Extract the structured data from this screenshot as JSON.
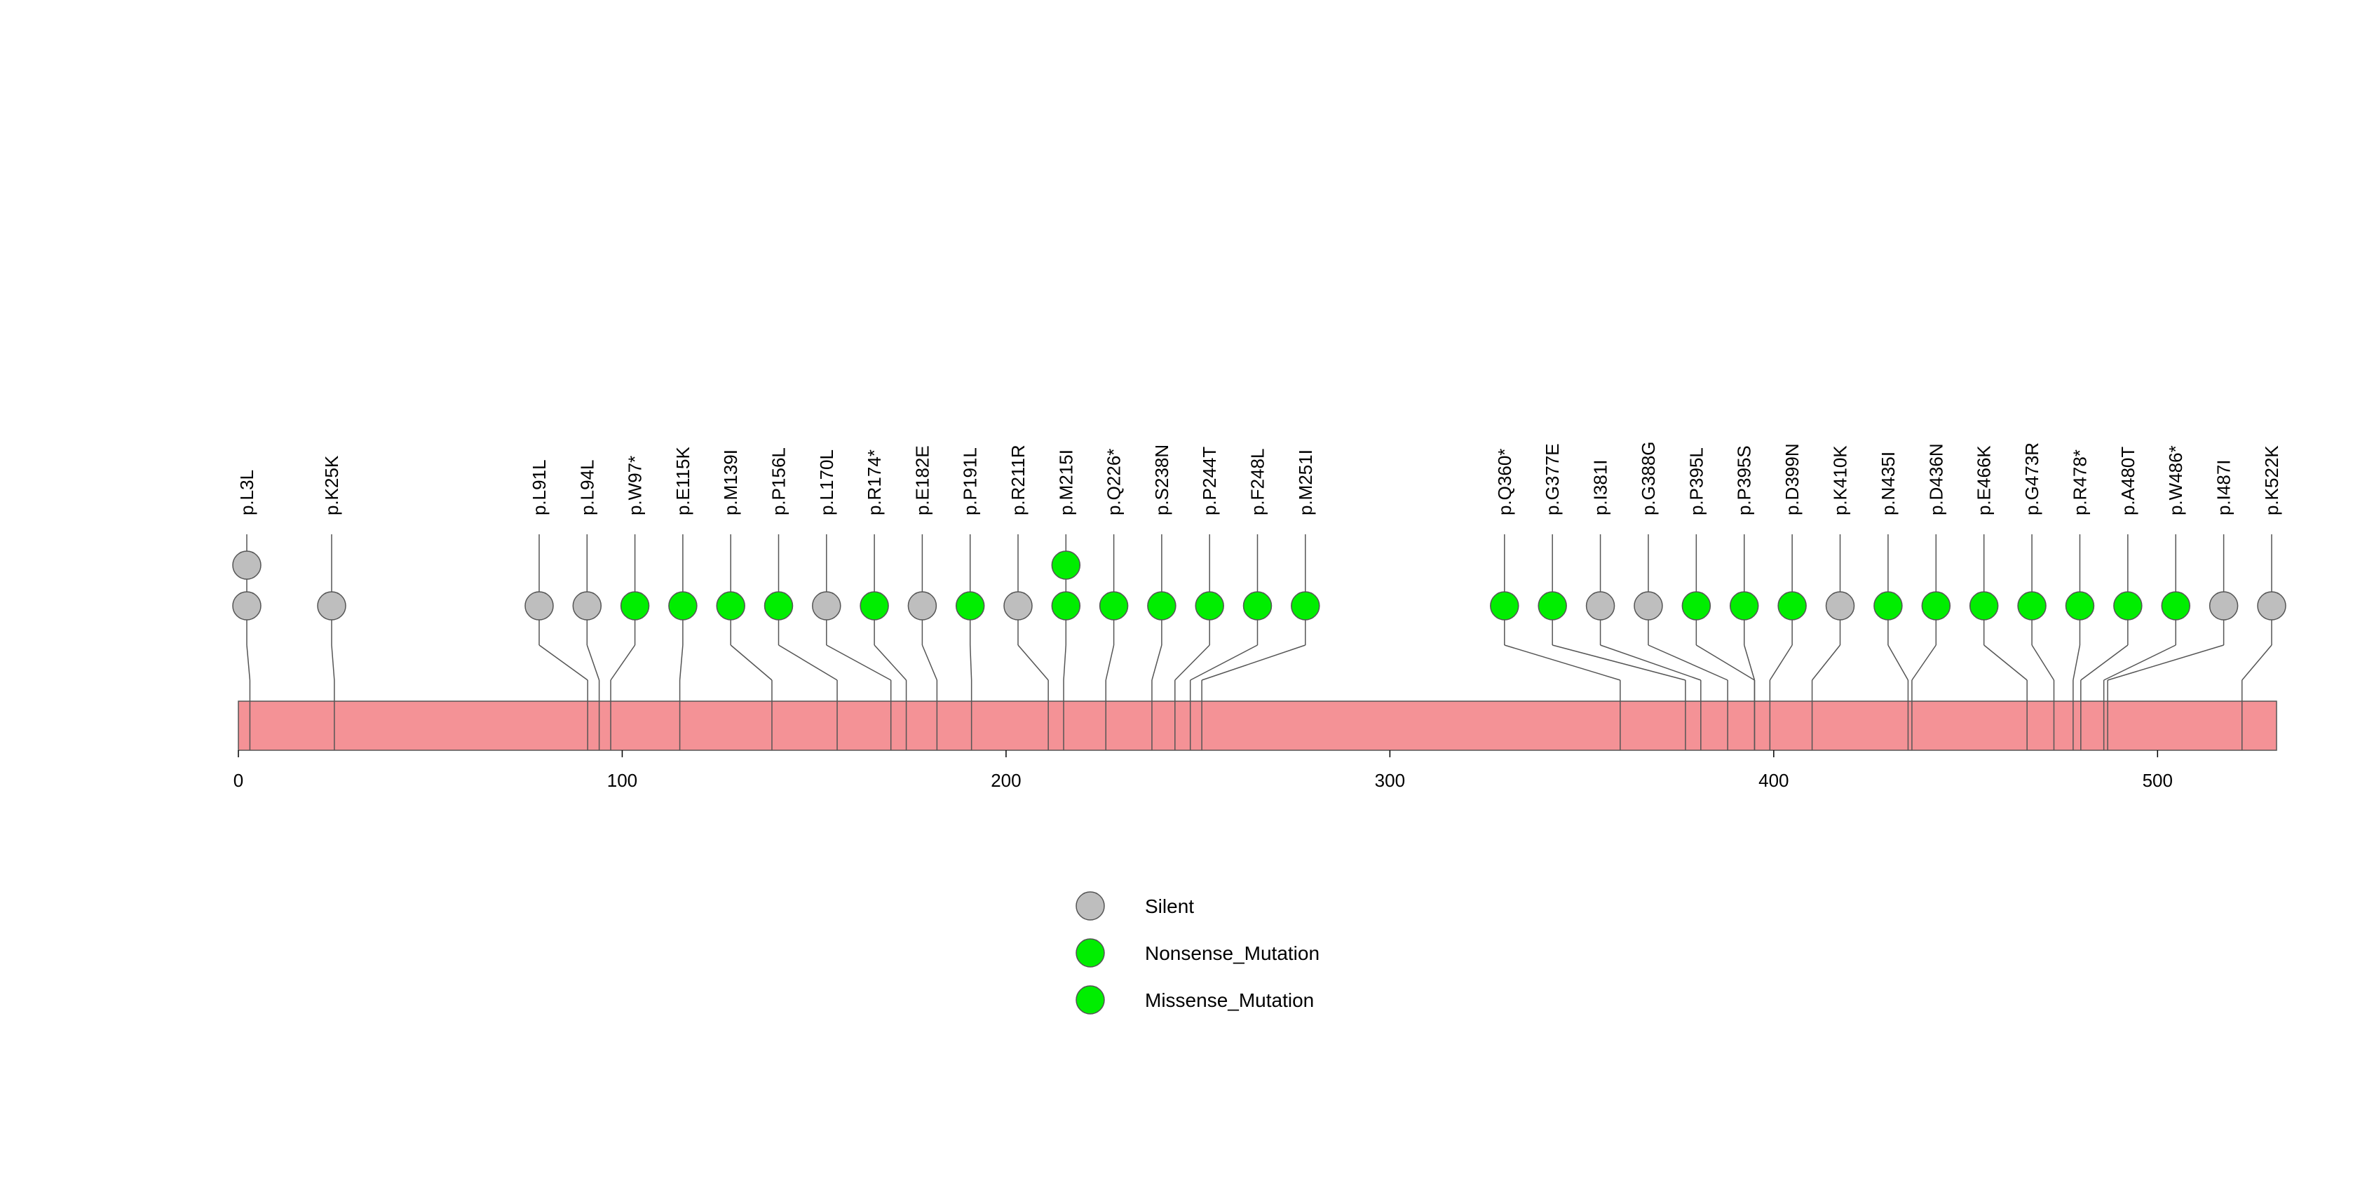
{
  "chart_data": {
    "type": "lollipop",
    "title": "",
    "xlabel": "",
    "ylabel": "",
    "protein_length": 531,
    "xlim": [
      0,
      531
    ],
    "x_ticks": [
      0,
      100,
      200,
      300,
      400,
      500
    ],
    "x_tick_labels": [
      "0",
      "100",
      "200",
      "300",
      "400",
      "500"
    ],
    "mutations": [
      {
        "label": "p.L3L",
        "pos": 3,
        "types": [
          "Silent",
          "Silent"
        ]
      },
      {
        "label": "p.K25K",
        "pos": 25,
        "types": [
          "Silent"
        ]
      },
      {
        "label": "p.L91L",
        "pos": 91,
        "types": [
          "Silent"
        ]
      },
      {
        "label": "p.L94L",
        "pos": 94,
        "types": [
          "Silent"
        ]
      },
      {
        "label": "p.W97*",
        "pos": 97,
        "types": [
          "Nonsense_Mutation"
        ]
      },
      {
        "label": "p.E115K",
        "pos": 115,
        "types": [
          "Missense_Mutation"
        ]
      },
      {
        "label": "p.M139I",
        "pos": 139,
        "types": [
          "Missense_Mutation"
        ]
      },
      {
        "label": "p.P156L",
        "pos": 156,
        "types": [
          "Missense_Mutation"
        ]
      },
      {
        "label": "p.L170L",
        "pos": 170,
        "types": [
          "Silent"
        ]
      },
      {
        "label": "p.R174*",
        "pos": 174,
        "types": [
          "Nonsense_Mutation"
        ]
      },
      {
        "label": "p.E182E",
        "pos": 182,
        "types": [
          "Silent"
        ]
      },
      {
        "label": "p.P191L",
        "pos": 191,
        "types": [
          "Missense_Mutation"
        ]
      },
      {
        "label": "p.R211R",
        "pos": 211,
        "types": [
          "Silent"
        ]
      },
      {
        "label": "p.M215I",
        "pos": 215,
        "types": [
          "Missense_Mutation",
          "Missense_Mutation"
        ]
      },
      {
        "label": "p.Q226*",
        "pos": 226,
        "types": [
          "Nonsense_Mutation"
        ]
      },
      {
        "label": "p.S238N",
        "pos": 238,
        "types": [
          "Missense_Mutation"
        ]
      },
      {
        "label": "p.P244T",
        "pos": 244,
        "types": [
          "Missense_Mutation"
        ]
      },
      {
        "label": "p.F248L",
        "pos": 248,
        "types": [
          "Missense_Mutation"
        ]
      },
      {
        "label": "p.M251I",
        "pos": 251,
        "types": [
          "Missense_Mutation"
        ]
      },
      {
        "label": "p.Q360*",
        "pos": 360,
        "types": [
          "Nonsense_Mutation"
        ]
      },
      {
        "label": "p.G377E",
        "pos": 377,
        "types": [
          "Missense_Mutation"
        ]
      },
      {
        "label": "p.I381I",
        "pos": 381,
        "types": [
          "Silent"
        ]
      },
      {
        "label": "p.G388G",
        "pos": 388,
        "types": [
          "Silent"
        ]
      },
      {
        "label": "p.P395L",
        "pos": 395,
        "types": [
          "Missense_Mutation"
        ]
      },
      {
        "label": "p.P395S",
        "pos": 395,
        "types": [
          "Missense_Mutation"
        ]
      },
      {
        "label": "p.D399N",
        "pos": 399,
        "types": [
          "Missense_Mutation"
        ]
      },
      {
        "label": "p.K410K",
        "pos": 410,
        "types": [
          "Silent"
        ]
      },
      {
        "label": "p.N435I",
        "pos": 435,
        "types": [
          "Missense_Mutation"
        ]
      },
      {
        "label": "p.D436N",
        "pos": 436,
        "types": [
          "Missense_Mutation"
        ]
      },
      {
        "label": "p.E466K",
        "pos": 466,
        "types": [
          "Missense_Mutation"
        ]
      },
      {
        "label": "p.G473R",
        "pos": 473,
        "types": [
          "Missense_Mutation"
        ]
      },
      {
        "label": "p.R478*",
        "pos": 478,
        "types": [
          "Nonsense_Mutation"
        ]
      },
      {
        "label": "p.A480T",
        "pos": 480,
        "types": [
          "Missense_Mutation"
        ]
      },
      {
        "label": "p.W486*",
        "pos": 486,
        "types": [
          "Nonsense_Mutation"
        ]
      },
      {
        "label": "p.I487I",
        "pos": 487,
        "types": [
          "Silent"
        ]
      },
      {
        "label": "p.K522K",
        "pos": 522,
        "types": [
          "Silent"
        ]
      }
    ],
    "legend": [
      {
        "label": "Silent",
        "color": "#bebebe"
      },
      {
        "label": "Nonsense_Mutation",
        "color": "#00ee00"
      },
      {
        "label": "Missense_Mutation",
        "color": "#00ee00"
      }
    ],
    "legend_position": "bottom-center",
    "colors": {
      "Silent": "#bebebe",
      "Nonsense_Mutation": "#00ee00",
      "Missense_Mutation": "#00ee00",
      "protein_bar": "#f49296",
      "line": "#555555"
    }
  }
}
